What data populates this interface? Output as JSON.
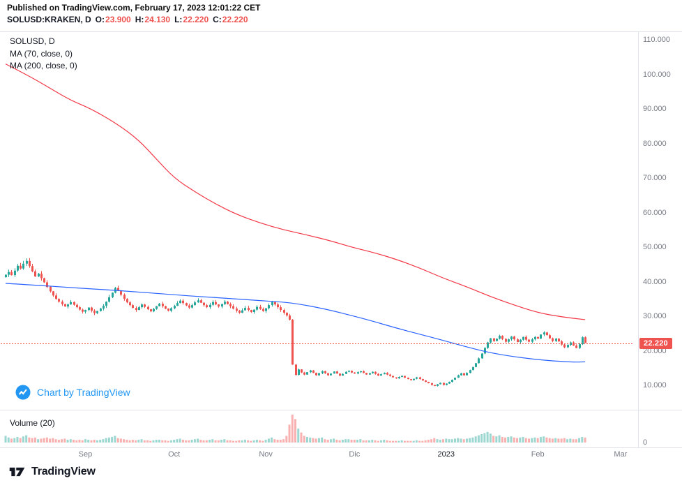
{
  "header": {
    "published_line": "Published on TradingView.com, February 17, 2023 12:01:22 CET",
    "symbol": "SOLUSD:KRAKEN, D",
    "ohlc": [
      {
        "label": "O:",
        "value": "23.900"
      },
      {
        "label": "H:",
        "value": "24.130"
      },
      {
        "label": "L:",
        "value": "22.220"
      },
      {
        "label": "C:",
        "value": "22.220"
      }
    ]
  },
  "legend": {
    "symbol_interval": "SOLUSD, D",
    "ma70_label": "MA (70, close, 0)",
    "ma200_label": "MA (200, close, 0)"
  },
  "attribution": {
    "text": "Chart by TradingView"
  },
  "volume_pane": {
    "label": "Volume (20)",
    "zero_tick": "0"
  },
  "price_axis": {
    "tick_labels": [
      "110.000",
      "100.000",
      "90.000",
      "80.000",
      "70.000",
      "60.000",
      "50.000",
      "40.000",
      "30.000",
      "20.000",
      "10.000"
    ],
    "last_price_tag": "22.220"
  },
  "time_axis": {
    "ticks": [
      {
        "text": "Sep",
        "day": 27
      },
      {
        "text": "Oct",
        "day": 57
      },
      {
        "text": "Nov",
        "day": 88
      },
      {
        "text": "Dic",
        "day": 118
      },
      {
        "text": "2023",
        "day": 149,
        "emphasis": true
      },
      {
        "text": "Feb",
        "day": 180
      },
      {
        "text": "Mar",
        "day": 208
      }
    ]
  },
  "footer": {
    "brand": "TradingView"
  },
  "colors": {
    "up": "#26a69a",
    "down": "#ef5350",
    "ma70": "#2962ff",
    "ma200": "#f23645",
    "last_price": "#ef5350",
    "attribution_blue": "#2196f3",
    "axis_text": "#787b86",
    "text_dark": "#131722",
    "border": "#e0e3eb"
  },
  "chart_data": {
    "type": "candlestick",
    "symbol": "SOLUSD",
    "exchange": "KRAKEN",
    "interval": "D",
    "title": "SOLUSD, D",
    "price_ticks": [
      110,
      100,
      90,
      80,
      70,
      60,
      50,
      40,
      30,
      20,
      10
    ],
    "ylim": [
      7,
      112
    ],
    "last_price": 22.22,
    "last_ohlc": {
      "o": 23.9,
      "h": 24.13,
      "l": 22.22,
      "c": 22.22
    },
    "first_open": 41.3,
    "closes": [
      42.0,
      42.8,
      41.9,
      43.2,
      44.6,
      43.8,
      45.2,
      46.0,
      44.5,
      43.0,
      41.5,
      42.3,
      41.0,
      39.8,
      38.5,
      37.2,
      36.0,
      35.0,
      34.2,
      33.5,
      32.8,
      33.4,
      34.1,
      33.3,
      32.6,
      31.9,
      31.3,
      31.8,
      32.5,
      31.6,
      30.9,
      31.5,
      32.2,
      33.0,
      34.2,
      35.5,
      36.8,
      38.2,
      37.4,
      36.2,
      35.0,
      34.0,
      33.2,
      32.4,
      31.8,
      32.6,
      33.4,
      32.7,
      32.0,
      31.4,
      32.1,
      32.9,
      33.6,
      32.9,
      32.2,
      31.6,
      32.3,
      33.0,
      33.8,
      34.5,
      33.8,
      33.1,
      32.5,
      33.2,
      34.0,
      34.6,
      33.9,
      33.2,
      32.6,
      33.3,
      34.1,
      33.4,
      32.8,
      33.5,
      34.2,
      33.5,
      32.9,
      32.2,
      31.6,
      31.0,
      31.7,
      32.4,
      31.8,
      31.2,
      31.9,
      32.7,
      32.1,
      31.5,
      32.3,
      33.2,
      34.1,
      33.4,
      32.6,
      31.8,
      31.0,
      30.2,
      29.0,
      16.0,
      13.0,
      14.6,
      13.7,
      13.1,
      13.8,
      14.3,
      13.6,
      12.9,
      13.5,
      14.1,
      13.5,
      12.9,
      13.4,
      14.0,
      13.4,
      12.8,
      13.3,
      13.9,
      14.2,
      13.7,
      13.4,
      13.8,
      14.1,
      13.6,
      13.1,
      13.5,
      13.9,
      13.3,
      12.8,
      13.2,
      13.6,
      13.1,
      12.7,
      12.3,
      12.0,
      12.4,
      12.7,
      12.2,
      11.8,
      11.5,
      11.9,
      12.3,
      11.8,
      11.4,
      11.0,
      10.6,
      10.1,
      9.8,
      10.3,
      10.7,
      10.1,
      10.5,
      11.0,
      11.6,
      12.2,
      12.9,
      13.5,
      12.9,
      13.6,
      14.4,
      15.3,
      16.4,
      17.8,
      19.2,
      20.8,
      22.4,
      23.6,
      22.8,
      23.5,
      24.3,
      23.4,
      22.6,
      23.3,
      24.1,
      23.3,
      22.5,
      23.2,
      24.0,
      23.2,
      22.6,
      23.3,
      24.0,
      23.5,
      24.7,
      25.3,
      24.5,
      23.6,
      22.8,
      23.5,
      22.7,
      21.8,
      21.0,
      21.7,
      22.4,
      21.5,
      20.8,
      21.9,
      23.9,
      22.22
    ],
    "volumes": [
      1.2,
      0.9,
      0.7,
      0.8,
      1.0,
      0.8,
      1.1,
      1.3,
      0.9,
      0.8,
      0.9,
      0.6,
      0.7,
      0.8,
      0.9,
      0.7,
      0.8,
      0.6,
      0.5,
      0.6,
      0.7,
      0.5,
      0.6,
      0.5,
      0.4,
      0.5,
      0.4,
      0.6,
      0.5,
      0.4,
      0.5,
      0.4,
      0.5,
      0.6,
      0.8,
      0.9,
      1.0,
      1.2,
      0.8,
      0.7,
      0.6,
      0.5,
      0.4,
      0.5,
      0.4,
      0.5,
      0.6,
      0.4,
      0.4,
      0.3,
      0.4,
      0.5,
      0.5,
      0.4,
      0.4,
      0.3,
      0.4,
      0.5,
      0.6,
      0.7,
      0.5,
      0.4,
      0.4,
      0.5,
      0.6,
      0.7,
      0.5,
      0.4,
      0.4,
      0.5,
      0.6,
      0.4,
      0.4,
      0.5,
      0.6,
      0.4,
      0.4,
      0.3,
      0.3,
      0.4,
      0.4,
      0.5,
      0.4,
      0.3,
      0.4,
      0.5,
      0.4,
      0.3,
      0.5,
      0.7,
      0.9,
      0.6,
      0.5,
      0.5,
      0.6,
      1.2,
      3.2,
      5.0,
      4.2,
      2.5,
      1.8,
      1.2,
      1.0,
      0.9,
      0.8,
      0.7,
      0.8,
      0.9,
      0.6,
      0.5,
      0.6,
      0.7,
      0.5,
      0.4,
      0.5,
      0.6,
      0.6,
      0.5,
      0.5,
      0.5,
      0.6,
      0.4,
      0.4,
      0.4,
      0.5,
      0.4,
      0.3,
      0.4,
      0.5,
      0.4,
      0.3,
      0.3,
      0.3,
      0.3,
      0.4,
      0.3,
      0.3,
      0.3,
      0.3,
      0.4,
      0.3,
      0.3,
      0.4,
      0.5,
      0.6,
      0.8,
      0.6,
      0.5,
      0.6,
      0.7,
      0.6,
      0.6,
      0.7,
      0.8,
      0.7,
      0.6,
      0.7,
      0.8,
      0.9,
      1.1,
      1.3,
      1.5,
      1.7,
      1.9,
      1.6,
      1.2,
      1.1,
      1.3,
      1.0,
      0.9,
      1.0,
      1.1,
      0.9,
      0.8,
      0.9,
      1.0,
      0.8,
      0.7,
      0.8,
      0.9,
      0.8,
      1.0,
      1.1,
      0.9,
      0.8,
      0.7,
      0.8,
      0.7,
      0.7,
      0.8,
      0.6,
      0.7,
      0.6,
      0.6,
      0.8,
      1.0,
      0.9
    ],
    "ma70_points": [
      [
        0,
        39.5
      ],
      [
        10,
        39.0
      ],
      [
        20,
        38.4
      ],
      [
        27,
        38.0
      ],
      [
        35,
        37.6
      ],
      [
        45,
        37.0
      ],
      [
        57,
        36.2
      ],
      [
        67,
        35.6
      ],
      [
        78,
        35.0
      ],
      [
        88,
        34.4
      ],
      [
        95,
        34.0
      ],
      [
        100,
        33.4
      ],
      [
        105,
        32.6
      ],
      [
        110,
        31.7
      ],
      [
        117,
        30.2
      ],
      [
        124,
        28.6
      ],
      [
        132,
        26.6
      ],
      [
        140,
        24.8
      ],
      [
        148,
        23.0
      ],
      [
        155,
        21.3
      ],
      [
        163,
        19.6
      ],
      [
        170,
        18.5
      ],
      [
        180,
        17.4
      ],
      [
        188,
        16.9
      ],
      [
        193,
        16.7
      ],
      [
        196,
        16.8
      ]
    ],
    "ma200_points": [
      [
        0,
        103.0
      ],
      [
        8,
        99.5
      ],
      [
        15,
        96.0
      ],
      [
        22,
        92.5
      ],
      [
        29,
        90.0
      ],
      [
        38,
        85.5
      ],
      [
        45,
        81.0
      ],
      [
        51,
        75.5
      ],
      [
        57,
        70.0
      ],
      [
        64,
        66.0
      ],
      [
        71,
        62.5
      ],
      [
        78,
        59.5
      ],
      [
        86,
        57.0
      ],
      [
        94,
        55.0
      ],
      [
        102,
        53.5
      ],
      [
        110,
        51.8
      ],
      [
        117,
        50.0
      ],
      [
        125,
        48.3
      ],
      [
        132,
        46.5
      ],
      [
        140,
        44.0
      ],
      [
        148,
        41.0
      ],
      [
        156,
        38.5
      ],
      [
        163,
        36.0
      ],
      [
        171,
        33.5
      ],
      [
        180,
        31.0
      ],
      [
        188,
        29.8
      ],
      [
        196,
        29.0
      ]
    ]
  }
}
